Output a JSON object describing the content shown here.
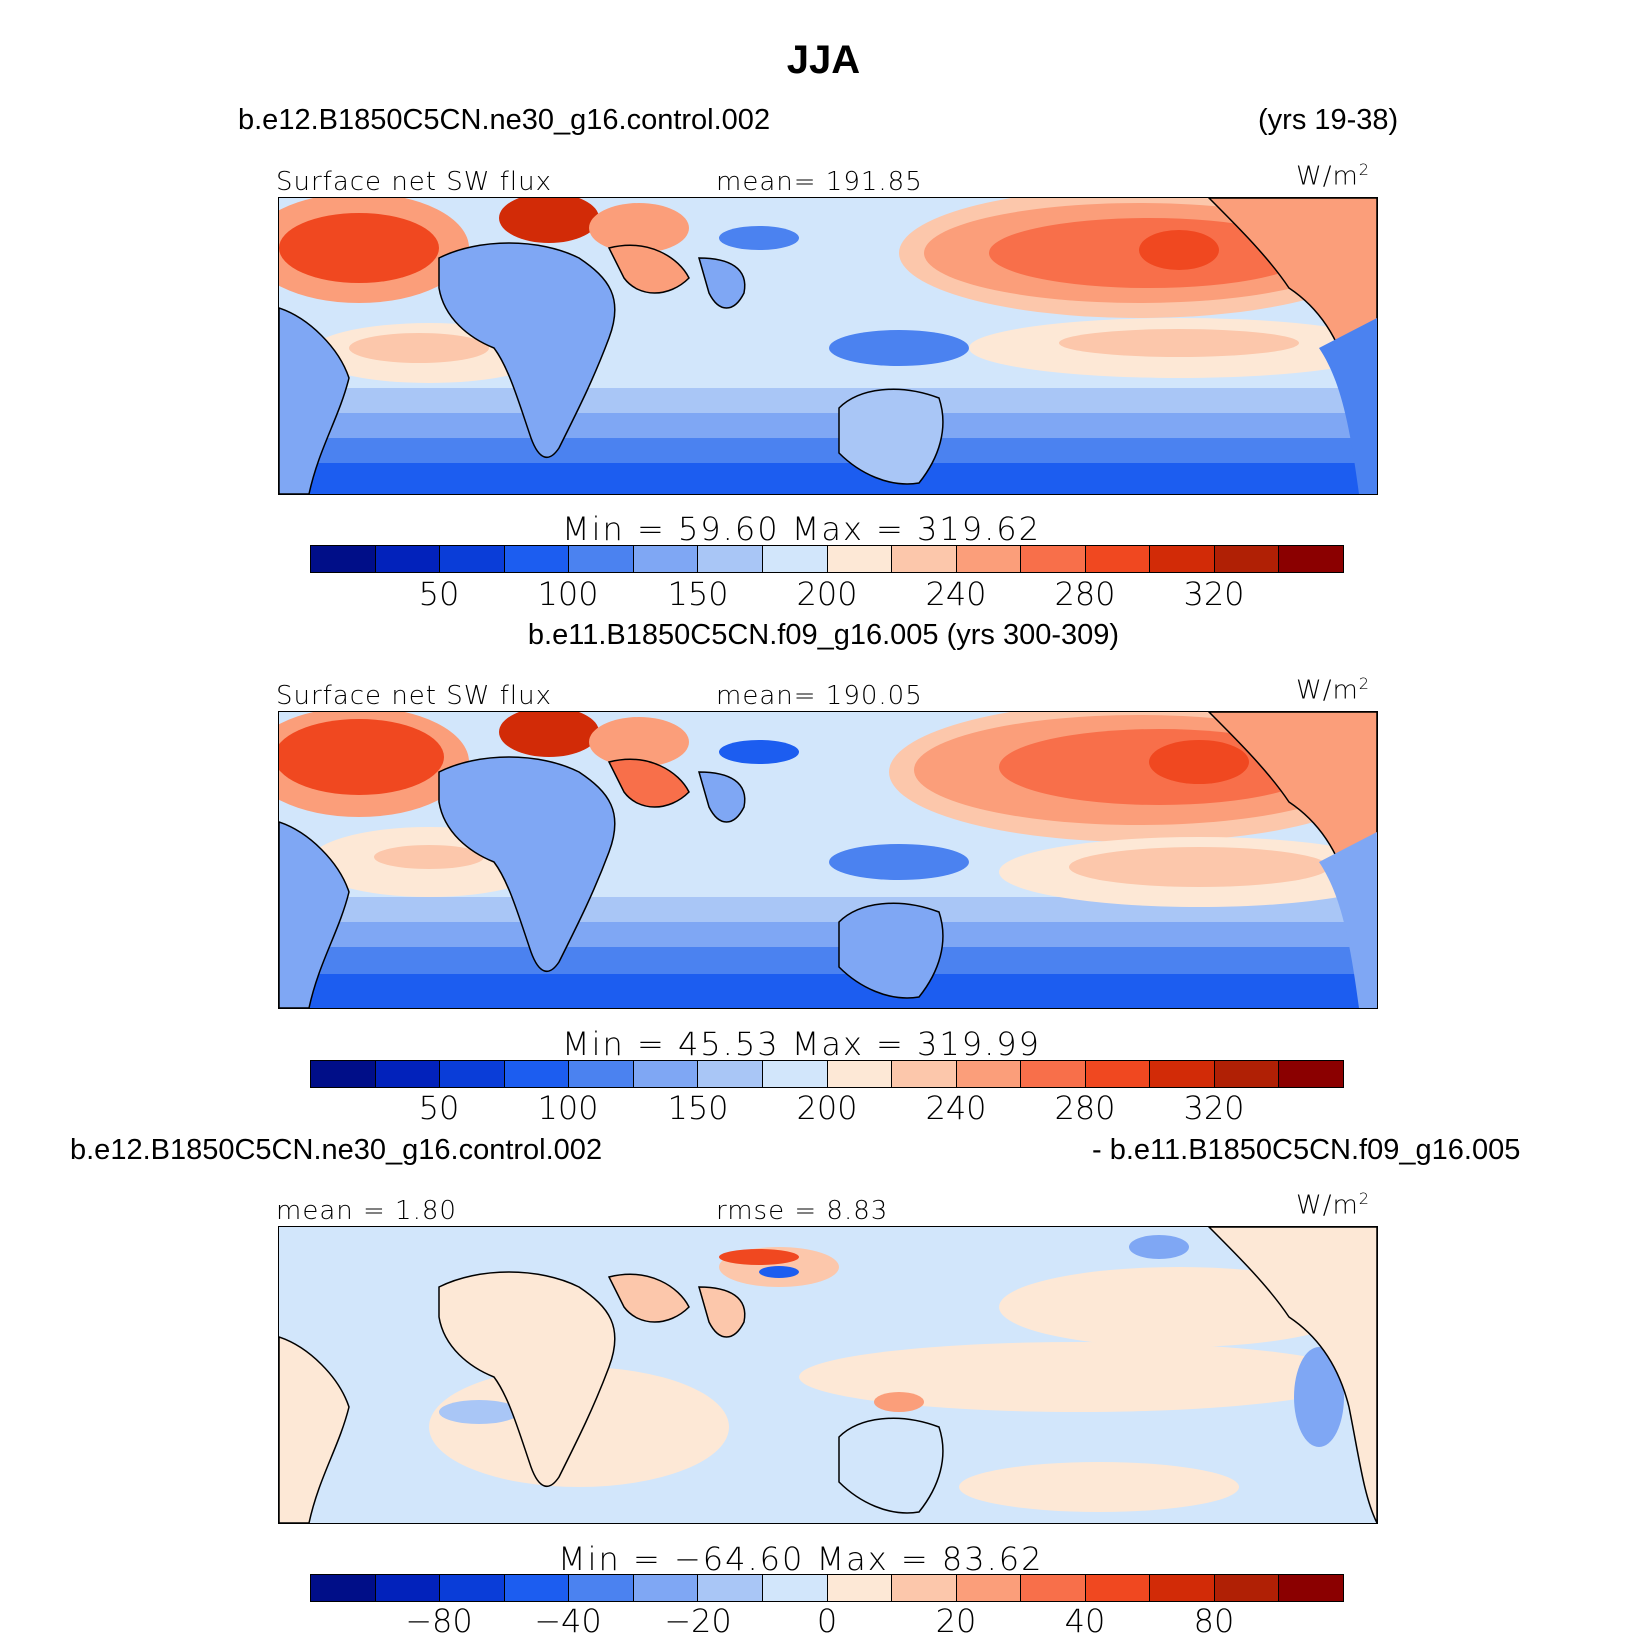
{
  "title": "JJA",
  "panels": [
    {
      "case_left": "b.e12.B1850C5CN.ne30_g16.control.002",
      "case_right": "(yrs 19-38)",
      "field_label": "Surface net SW flux",
      "stat_label": "mean= 191.85",
      "units": "W/m",
      "units_exp": "2",
      "minmax": "Min =  59.60 Max = 319.62",
      "ticks": [
        "50",
        "100",
        "150",
        "200",
        "240",
        "280",
        "320"
      ],
      "kind": "abs"
    },
    {
      "case_center": "b.e11.B1850C5CN.f09_g16.005 (yrs 300-309)",
      "field_label": "Surface net SW flux",
      "stat_label": "mean= 190.05",
      "units": "W/m",
      "units_exp": "2",
      "minmax": "Min =  45.53 Max = 319.99",
      "ticks": [
        "50",
        "100",
        "150",
        "200",
        "240",
        "280",
        "320"
      ],
      "kind": "abs"
    },
    {
      "case_left": "b.e12.B1850C5CN.ne30_g16.control.002",
      "case_right": "- b.e11.B1850C5CN.f09_g16.005",
      "field_label": "mean =   1.80",
      "stat_label": "rmse =   8.83",
      "units": "W/m",
      "units_exp": "2",
      "minmax": "Min = −64.60 Max =  83.62",
      "ticks": [
        "−80",
        "−40",
        "−20",
        "0",
        "20",
        "40",
        "80"
      ],
      "kind": "diff"
    }
  ],
  "colorbar_colors": [
    "#000e88",
    "#0222bb",
    "#0a3dd8",
    "#1c5df0",
    "#4b82f0",
    "#7fa7f4",
    "#a9c6f6",
    "#d2e6fb",
    "#fde8d6",
    "#fcc7ab",
    "#fb9e7a",
    "#f86f4a",
    "#f04820",
    "#d22b07",
    "#b02005",
    "#8b0000"
  ]
}
